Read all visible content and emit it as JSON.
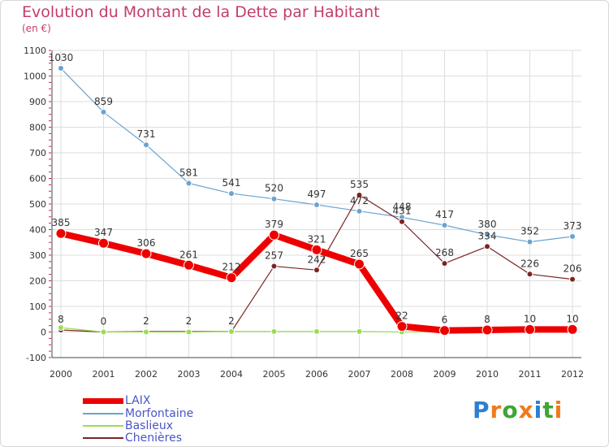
{
  "colors": {
    "title": "#c43c6c",
    "legend_text": "#4a55c8",
    "axis": "#444444",
    "grid": "#dddddd",
    "tick_marks": "#cc2244"
  },
  "chart_data": {
    "type": "line",
    "title": "Evolution du Montant de la Dette par Habitant",
    "unit": "(en €)",
    "xlabel": "",
    "ylabel": "",
    "x": [
      "2000",
      "2001",
      "2002",
      "2003",
      "2004",
      "2005",
      "2006",
      "2007",
      "2008",
      "2009",
      "2010",
      "2011",
      "2012"
    ],
    "ylim": [
      -100,
      1100
    ],
    "yticks": [
      -100,
      0,
      100,
      200,
      300,
      400,
      500,
      600,
      700,
      800,
      900,
      1000,
      1100
    ],
    "grid": true,
    "legend_position": "bottom-left",
    "series": [
      {
        "name": "Morfontaine",
        "color": "#6aa3cf",
        "line_width": 1.2,
        "marker_radius": 3.5,
        "values": [
          1030,
          859,
          731,
          581,
          541,
          520,
          497,
          472,
          448,
          417,
          380,
          352,
          373
        ]
      },
      {
        "name": "Chenières",
        "color": "#7a2525",
        "line_width": 1.2,
        "marker_radius": 3.5,
        "values": [
          8,
          0,
          2,
          2,
          2,
          257,
          242,
          535,
          431,
          268,
          334,
          226,
          206
        ]
      },
      {
        "name": "Baslieux",
        "color": "#99dd55",
        "line_width": 1.2,
        "marker_radius": 3.5,
        "values": [
          17,
          0,
          0,
          0,
          2,
          2,
          2,
          2,
          0,
          2,
          3,
          3,
          3
        ]
      },
      {
        "name": "LAIX",
        "color": "#ee0000",
        "line_width": 8,
        "marker_radius": 6,
        "values": [
          385,
          347,
          306,
          261,
          212,
          379,
          321,
          265,
          22,
          6,
          8,
          10,
          10
        ]
      }
    ],
    "legend": [
      "LAIX",
      "Morfontaine",
      "Baslieux",
      "Chenières"
    ]
  },
  "brand": {
    "letters": [
      "P",
      "r",
      "o",
      "x",
      "i",
      "t",
      "i"
    ],
    "letter_colors": [
      "#2b7fd4",
      "#f07a1a",
      "#3fa535",
      "#f07a1a",
      "#2b7fd4",
      "#3fa535",
      "#f07a1a"
    ]
  }
}
